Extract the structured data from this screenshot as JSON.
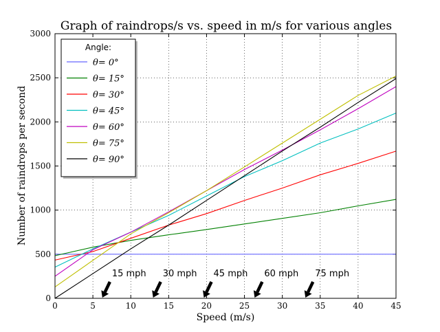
{
  "chart_data": {
    "type": "line",
    "title": "Graph of raindrops/s vs. speed in m/s for various angles",
    "xlabel": "Speed (m/s)",
    "ylabel": "Number of raindrops per second",
    "xlim": [
      0,
      45
    ],
    "ylim": [
      0,
      3000
    ],
    "xticks": [
      0,
      5,
      10,
      15,
      20,
      25,
      30,
      35,
      40,
      45
    ],
    "yticks": [
      0,
      500,
      1000,
      1500,
      2000,
      2500,
      3000
    ],
    "grid": true,
    "legend": {
      "title": "Angle:",
      "placement": "top-left"
    },
    "x": [
      0,
      5,
      10,
      15,
      20,
      25,
      30,
      35,
      40,
      45
    ],
    "series": [
      {
        "name": "θ= 0°",
        "color": "#6666ff",
        "values": [
          500,
          500,
          500,
          500,
          500,
          500,
          500,
          500,
          500,
          500
        ]
      },
      {
        "name": "θ= 15°",
        "color": "#008000",
        "values": [
          483,
          580,
          657,
          720,
          780,
          843,
          906,
          970,
          1048,
          1121
        ]
      },
      {
        "name": "θ= 30°",
        "color": "#ff0000",
        "values": [
          433,
          530,
          680,
          830,
          960,
          1110,
          1250,
          1400,
          1530,
          1668
        ]
      },
      {
        "name": "θ= 45°",
        "color": "#00bfbf",
        "values": [
          354,
          560,
          750,
          940,
          1160,
          1380,
          1560,
          1760,
          1920,
          2100
        ]
      },
      {
        "name": "θ= 60°",
        "color": "#bf00bf",
        "values": [
          250,
          550,
          750,
          980,
          1220,
          1460,
          1680,
          1910,
          2150,
          2400
        ]
      },
      {
        "name": "θ= 75°",
        "color": "#bfbf00",
        "values": [
          129,
          430,
          730,
          970,
          1220,
          1490,
          1760,
          2030,
          2300,
          2520
        ]
      },
      {
        "name": "θ= 90°",
        "color": "#000000",
        "values": [
          0,
          280,
          560,
          830,
          1110,
          1390,
          1670,
          1940,
          2220,
          2490
        ]
      }
    ],
    "annotations": [
      {
        "text": "15 mph",
        "x": 6.7
      },
      {
        "text": "30 mph",
        "x": 13.4
      },
      {
        "text": "45 mph",
        "x": 20.1
      },
      {
        "text": "60 mph",
        "x": 26.8
      },
      {
        "text": "75 mph",
        "x": 33.5
      }
    ]
  }
}
